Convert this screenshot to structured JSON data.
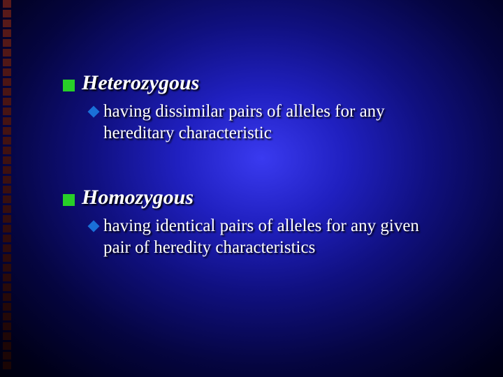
{
  "slide": {
    "background": {
      "gradient_center": "#3a3af0",
      "gradient_mid": "#101080",
      "gradient_edge": "#000000"
    },
    "decoration": {
      "square_count": 38,
      "color_start": "#5a1a1a",
      "color_end": "#1a0505"
    },
    "bullet_colors": {
      "square": "#28d028",
      "diamond": "#1a70d8"
    },
    "text_color": "#ffffff",
    "font_family": "Times New Roman",
    "terms": [
      {
        "title": "Heterozygous",
        "title_fontsize": 30,
        "title_italic": true,
        "title_bold": true,
        "definition": "having dissimilar pairs of alleles for any hereditary characteristic",
        "definition_fontsize": 25
      },
      {
        "title": "Homozygous",
        "title_fontsize": 30,
        "title_italic": true,
        "title_bold": true,
        "definition": "having identical pairs of alleles for any given pair of heredity characteristics",
        "definition_fontsize": 25
      }
    ]
  }
}
